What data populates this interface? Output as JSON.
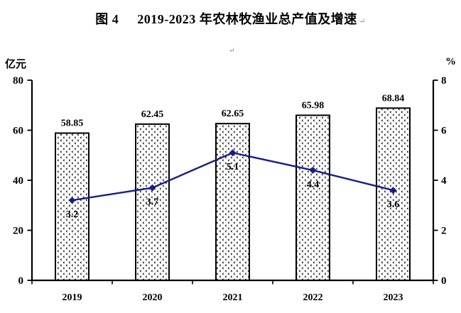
{
  "header": {
    "figure_label": "图 4",
    "title_text": "2019-2023 年农林牧渔业总产值及增速",
    "paragraph_mark": "↵"
  },
  "colors": {
    "line": "#171d8d",
    "bar_border": "#000000",
    "bar_pattern": "#000000",
    "axis": "#000000",
    "text": "#000000",
    "paragraph_mark": "#8a8a8a"
  },
  "chart_data": {
    "type": "bar+line",
    "title": "图 4　2019-2023 年农林牧渔业总产值及增速",
    "categories": [
      "2019",
      "2020",
      "2021",
      "2022",
      "2023"
    ],
    "series": [
      {
        "name": "total-output-value-bars",
        "type": "bar",
        "axis": "left",
        "values": [
          58.85,
          62.45,
          62.65,
          65.98,
          68.84
        ],
        "labels": [
          "58.85",
          "62.45",
          "62.65",
          "65.98",
          "68.84"
        ]
      },
      {
        "name": "growth-rate-line",
        "type": "line",
        "axis": "right",
        "values": [
          3.2,
          3.7,
          5.1,
          4.4,
          3.6
        ],
        "labels": [
          "3.2",
          "3.7",
          "5.1",
          "4.4",
          "3.6"
        ]
      }
    ],
    "left_axis": {
      "unit": "亿元",
      "range": [
        0,
        80
      ],
      "ticks": [
        0,
        20,
        40,
        60,
        80
      ]
    },
    "right_axis": {
      "unit": "%",
      "range": [
        0,
        8
      ],
      "ticks": [
        0,
        2,
        4,
        6,
        8
      ]
    },
    "grid": false,
    "legend": false
  }
}
